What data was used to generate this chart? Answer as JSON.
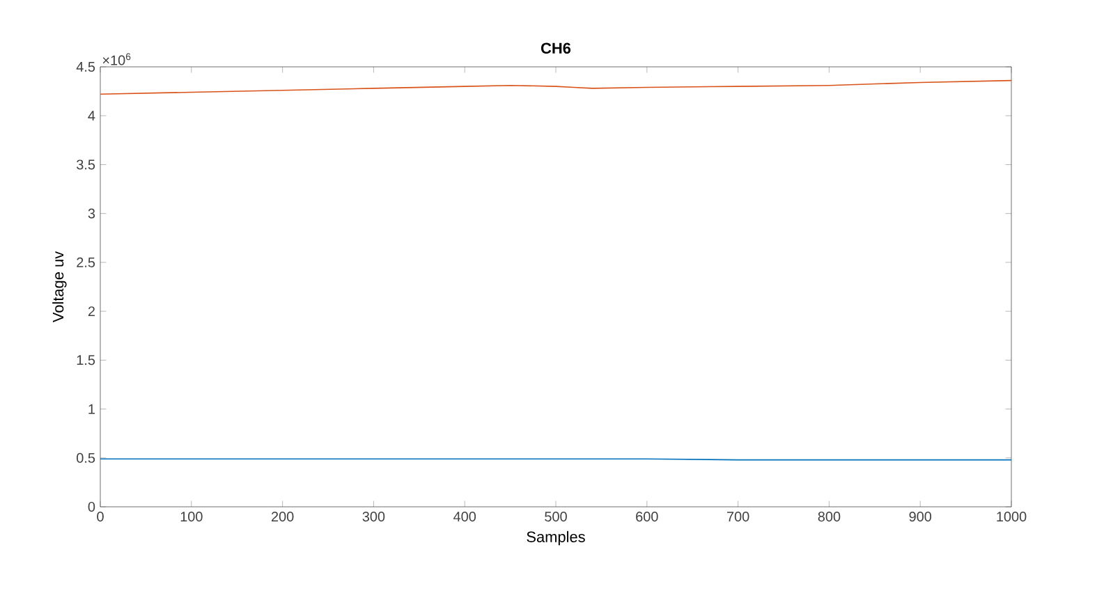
{
  "chart_data": {
    "type": "line",
    "title": "CH6",
    "xlabel": "Samples",
    "ylabel": "Voltage uv",
    "annotations": [
      "×10$^{6}$"
    ],
    "x": [
      0,
      100,
      200,
      300,
      400,
      450,
      500,
      520,
      540,
      600,
      700,
      800,
      900,
      1000
    ],
    "series": [
      {
        "color": "#0072bd",
        "values": [
          0.49,
          0.49,
          0.49,
          0.49,
          0.49,
          0.49,
          0.49,
          0.49,
          0.49,
          0.49,
          0.48,
          0.48,
          0.48,
          0.48
        ]
      },
      {
        "color": "#d95319",
        "values": [
          4.22,
          4.24,
          4.26,
          4.28,
          4.3,
          4.31,
          4.3,
          4.29,
          4.28,
          4.29,
          4.3,
          4.31,
          4.34,
          4.36
        ]
      }
    ],
    "xlim": [
      0,
      1000
    ],
    "xticks": [
      0,
      100,
      200,
      300,
      400,
      500,
      600,
      700,
      800,
      900,
      1000
    ],
    "ylim": [
      0,
      4.5
    ],
    "yticks": [
      0,
      0.5,
      1,
      1.5,
      2,
      2.5,
      3,
      3.5,
      4,
      4.5
    ],
    "grid": false,
    "marker": "none",
    "line_style": "solid"
  }
}
